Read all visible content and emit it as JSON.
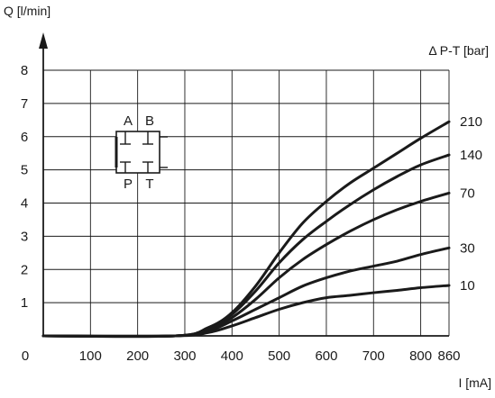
{
  "chart_data": {
    "type": "line",
    "xlabel": "I [mA]",
    "ylabel": "Q [l/min]",
    "legend_title": "Δ P-T [bar]",
    "xlim": [
      0,
      860
    ],
    "ylim": [
      0,
      8
    ],
    "x_ticks": [
      0,
      100,
      200,
      300,
      400,
      500,
      600,
      700,
      800,
      860
    ],
    "y_ticks": [
      1,
      2,
      3,
      4,
      5,
      6,
      7,
      8
    ],
    "grid": true,
    "series": [
      {
        "name": "210",
        "x": [
          0,
          280,
          350,
          400,
          450,
          500,
          550,
          600,
          650,
          700,
          750,
          800,
          860
        ],
        "y": [
          0,
          0,
          0.25,
          0.7,
          1.5,
          2.5,
          3.4,
          4.05,
          4.6,
          5.05,
          5.5,
          5.95,
          6.45
        ]
      },
      {
        "name": "140",
        "x": [
          0,
          280,
          350,
          400,
          450,
          500,
          550,
          600,
          650,
          700,
          750,
          800,
          860
        ],
        "y": [
          0,
          0,
          0.25,
          0.65,
          1.35,
          2.2,
          2.9,
          3.45,
          3.95,
          4.4,
          4.8,
          5.15,
          5.45
        ]
      },
      {
        "name": "70",
        "x": [
          0,
          280,
          350,
          400,
          450,
          500,
          550,
          600,
          650,
          700,
          750,
          800,
          860
        ],
        "y": [
          0,
          0,
          0.2,
          0.55,
          1.1,
          1.75,
          2.3,
          2.75,
          3.15,
          3.5,
          3.8,
          4.05,
          4.3
        ]
      },
      {
        "name": "30",
        "x": [
          0,
          280,
          350,
          400,
          450,
          500,
          550,
          600,
          650,
          700,
          750,
          800,
          860
        ],
        "y": [
          0,
          0,
          0.15,
          0.45,
          0.8,
          1.15,
          1.5,
          1.75,
          1.95,
          2.1,
          2.25,
          2.45,
          2.65
        ]
      },
      {
        "name": "10",
        "x": [
          0,
          280,
          350,
          400,
          450,
          500,
          550,
          600,
          650,
          700,
          750,
          800,
          860
        ],
        "y": [
          0,
          0,
          0.1,
          0.3,
          0.55,
          0.8,
          1.0,
          1.15,
          1.22,
          1.3,
          1.37,
          1.45,
          1.52
        ]
      }
    ],
    "series_color": "#1a1a1a",
    "grid_color": "#1a1a1a",
    "inset_symbol": {
      "top_labels": [
        "A",
        "B"
      ],
      "bottom_labels": [
        "P",
        "T"
      ]
    }
  }
}
